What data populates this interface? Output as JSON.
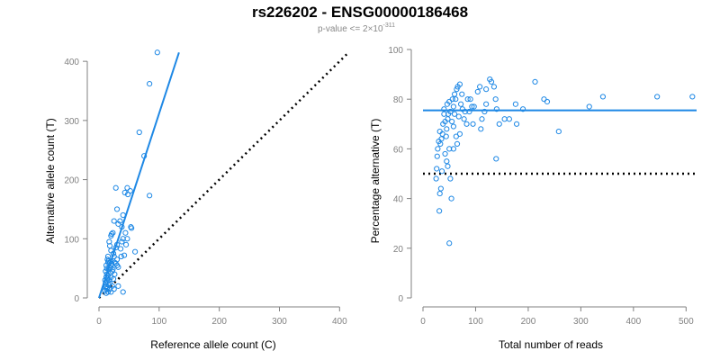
{
  "header": {
    "title": "rs226202 - ENSG00000186468",
    "pvalue_prefix": "p-value <= 2",
    "pvalue_times": "×",
    "pvalue_base": "10",
    "pvalue_exponent": "-311"
  },
  "colors": {
    "series": "#1e88e5",
    "reference_line": "#000000",
    "axis": "#808080"
  },
  "chart_data": [
    {
      "type": "scatter",
      "id": "left",
      "xlabel": "Reference allele count (C)",
      "ylabel": "Alternative allele count (T)",
      "xlim": [
        0,
        410
      ],
      "ylim": [
        0,
        420
      ],
      "xticks": [
        0,
        100,
        200,
        300,
        400
      ],
      "yticks": [
        0,
        100,
        200,
        300,
        400
      ],
      "grid": false,
      "fit_line": {
        "x0": 0,
        "y0": 0,
        "x1": 133,
        "y1": 415
      },
      "reference_line": {
        "x0": 0,
        "y0": 0,
        "x1": 415,
        "y1": 415,
        "style": "dotted"
      },
      "points": [
        [
          97,
          415
        ],
        [
          84,
          362
        ],
        [
          67,
          280
        ],
        [
          75,
          240
        ],
        [
          84,
          173
        ],
        [
          28,
          186
        ],
        [
          47,
          186
        ],
        [
          48,
          175
        ],
        [
          52,
          181
        ],
        [
          43,
          178
        ],
        [
          30,
          150
        ],
        [
          25,
          130
        ],
        [
          21,
          108
        ],
        [
          20,
          105
        ],
        [
          23,
          110
        ],
        [
          32,
          125
        ],
        [
          38,
          120
        ],
        [
          40,
          140
        ],
        [
          35,
          130
        ],
        [
          44,
          110
        ],
        [
          53,
          120
        ],
        [
          54,
          118
        ],
        [
          40,
          100
        ],
        [
          47,
          100
        ],
        [
          28,
          85
        ],
        [
          30,
          90
        ],
        [
          36,
          83
        ],
        [
          17,
          95
        ],
        [
          18,
          88
        ],
        [
          20,
          80
        ],
        [
          24,
          75
        ],
        [
          25,
          70
        ],
        [
          30,
          65
        ],
        [
          37,
          70
        ],
        [
          42,
          72
        ],
        [
          60,
          78
        ],
        [
          14,
          65
        ],
        [
          15,
          60
        ],
        [
          12,
          55
        ],
        [
          13,
          50
        ],
        [
          18,
          60
        ],
        [
          16,
          48
        ],
        [
          20,
          55
        ],
        [
          11,
          45
        ],
        [
          13,
          40
        ],
        [
          15,
          38
        ],
        [
          12,
          35
        ],
        [
          10,
          30
        ],
        [
          14,
          28
        ],
        [
          11,
          25
        ],
        [
          17,
          30
        ],
        [
          20,
          35
        ],
        [
          19,
          42
        ],
        [
          16,
          22
        ],
        [
          12,
          20
        ],
        [
          13,
          15
        ],
        [
          10,
          12
        ],
        [
          15,
          10
        ],
        [
          20,
          10
        ],
        [
          12,
          8
        ],
        [
          11,
          18
        ],
        [
          14,
          18
        ],
        [
          18,
          15
        ],
        [
          22,
          20
        ],
        [
          25,
          15
        ],
        [
          17,
          52
        ],
        [
          22,
          45
        ],
        [
          20,
          62
        ],
        [
          15,
          70
        ],
        [
          16,
          63
        ],
        [
          19,
          50
        ],
        [
          21,
          58
        ],
        [
          23,
          48
        ],
        [
          14,
          33
        ],
        [
          18,
          25
        ],
        [
          26,
          60
        ],
        [
          28,
          58
        ],
        [
          30,
          55
        ],
        [
          32,
          52
        ],
        [
          26,
          40
        ],
        [
          24,
          32
        ],
        [
          40,
          10
        ],
        [
          32,
          20
        ],
        [
          38,
          95
        ],
        [
          45,
          90
        ]
      ]
    },
    {
      "type": "scatter",
      "id": "right",
      "xlabel": "Total number of reads",
      "ylabel": "Percentage alternative (T)",
      "xlim": [
        0,
        520
      ],
      "ylim": [
        0,
        100
      ],
      "xticks": [
        0,
        100,
        200,
        300,
        400,
        500
      ],
      "yticks": [
        0,
        20,
        40,
        60,
        80,
        100
      ],
      "grid": false,
      "fit_line": {
        "x0": 0,
        "y0": 75.5,
        "x1": 520,
        "y1": 75.5
      },
      "reference_line": {
        "x0": 0,
        "y0": 50,
        "x1": 520,
        "y1": 50,
        "style": "dotted"
      },
      "points": [
        [
          512,
          81
        ],
        [
          445,
          81
        ],
        [
          342,
          81
        ],
        [
          316,
          77
        ],
        [
          258,
          67
        ],
        [
          236,
          79
        ],
        [
          230,
          80
        ],
        [
          213,
          87
        ],
        [
          190,
          76
        ],
        [
          178,
          70
        ],
        [
          176,
          78
        ],
        [
          164,
          72
        ],
        [
          155,
          72
        ],
        [
          135,
          85
        ],
        [
          130,
          87
        ],
        [
          127,
          88
        ],
        [
          138,
          80
        ],
        [
          140,
          76
        ],
        [
          145,
          70
        ],
        [
          139,
          56
        ],
        [
          120,
          84
        ],
        [
          108,
          85
        ],
        [
          104,
          83
        ],
        [
          97,
          77
        ],
        [
          93,
          77
        ],
        [
          95,
          70
        ],
        [
          110,
          68
        ],
        [
          112,
          72
        ],
        [
          117,
          75
        ],
        [
          120,
          78
        ],
        [
          70,
          86
        ],
        [
          66,
          85
        ],
        [
          64,
          84
        ],
        [
          74,
          82
        ],
        [
          75,
          76
        ],
        [
          80,
          75
        ],
        [
          83,
          70
        ],
        [
          88,
          75
        ],
        [
          72,
          78
        ],
        [
          68,
          73
        ],
        [
          62,
          80
        ],
        [
          60,
          82
        ],
        [
          56,
          80
        ],
        [
          58,
          77
        ],
        [
          55,
          71
        ],
        [
          52,
          75
        ],
        [
          50,
          79
        ],
        [
          48,
          74
        ],
        [
          47,
          72
        ],
        [
          45,
          68
        ],
        [
          44,
          65
        ],
        [
          42,
          71
        ],
        [
          40,
          74
        ],
        [
          38,
          70
        ],
        [
          37,
          66
        ],
        [
          35,
          64
        ],
        [
          33,
          62
        ],
        [
          32,
          67
        ],
        [
          30,
          63
        ],
        [
          28,
          60
        ],
        [
          27,
          57
        ],
        [
          26,
          52
        ],
        [
          25,
          48
        ],
        [
          36,
          51
        ],
        [
          42,
          58
        ],
        [
          45,
          55
        ],
        [
          47,
          53
        ],
        [
          50,
          60
        ],
        [
          52,
          48
        ],
        [
          54,
          40
        ],
        [
          50,
          22
        ],
        [
          32,
          42
        ],
        [
          31,
          35
        ],
        [
          34,
          44
        ],
        [
          40,
          76
        ],
        [
          46,
          78
        ],
        [
          58,
          69
        ],
        [
          60,
          74
        ],
        [
          63,
          65
        ],
        [
          65,
          62
        ],
        [
          70,
          66
        ],
        [
          78,
          72
        ],
        [
          85,
          80
        ],
        [
          90,
          80
        ],
        [
          58,
          60
        ]
      ]
    }
  ]
}
